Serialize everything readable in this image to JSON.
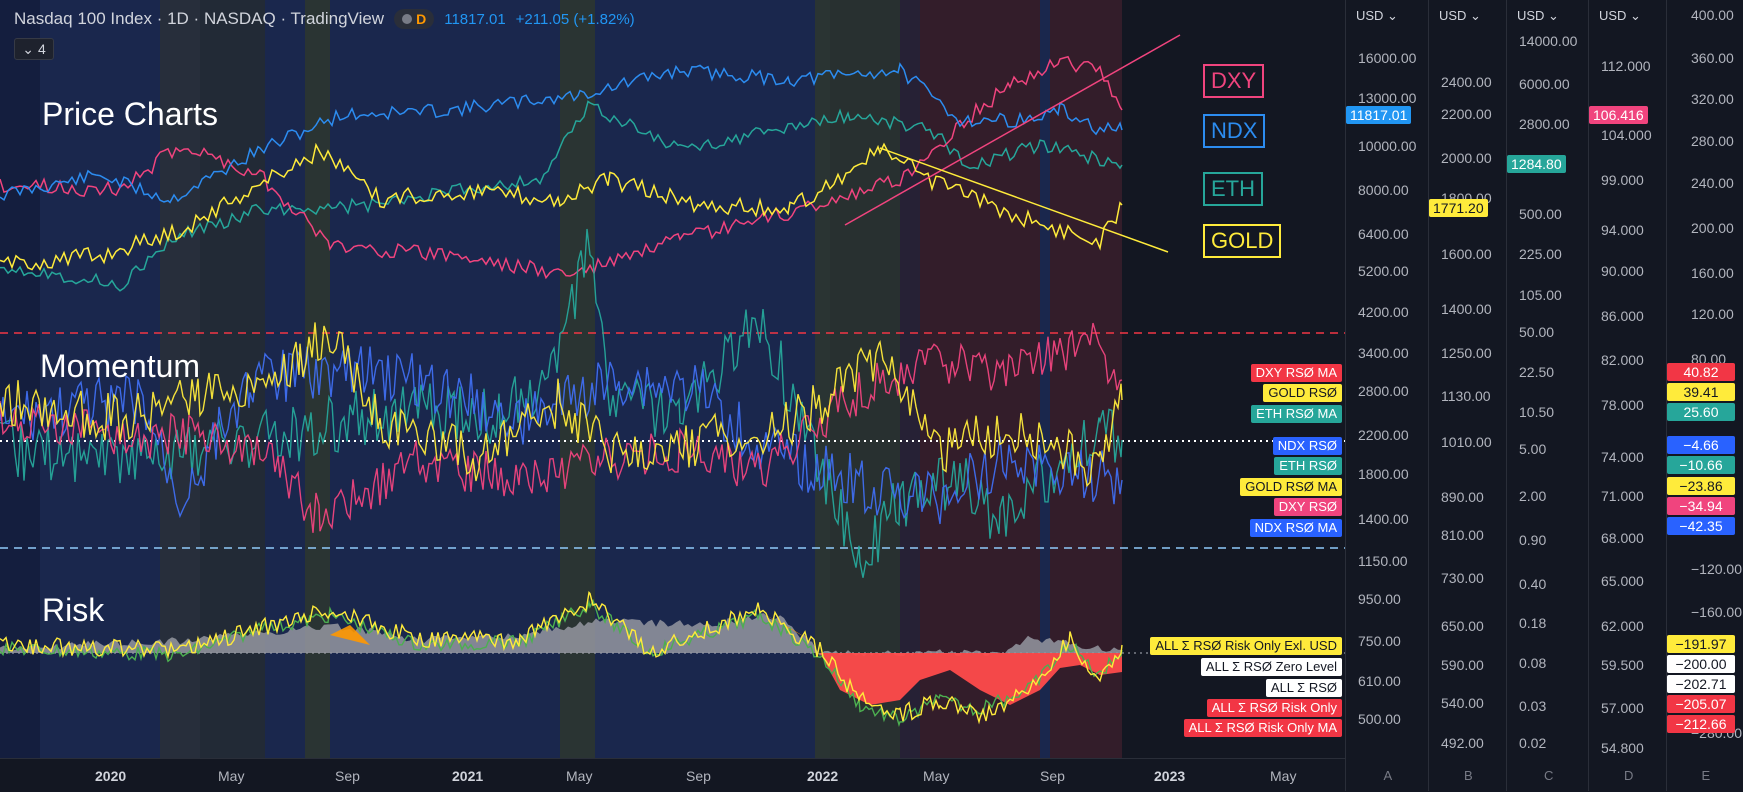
{
  "header": {
    "title": "Nasdaq 100 Index · 1D · NASDAQ · TradingView",
    "interval_badge": "D",
    "price": "11817.01",
    "change": "+211.05 (+1.82%)",
    "legend_count": "4"
  },
  "sections": {
    "price": "Price Charts",
    "momentum": "Momentum",
    "risk": "Risk"
  },
  "symbols": [
    {
      "label": "DXY",
      "color": "#f0447e"
    },
    {
      "label": "NDX",
      "color": "#2c8cf0"
    },
    {
      "label": "ETH",
      "color": "#26a69a"
    },
    {
      "label": "GOLD",
      "color": "#ffeb3b"
    }
  ],
  "indicator_labels": [
    {
      "text": "DXY RSØ MA",
      "bg": "#f23645",
      "fg": "#ffffff"
    },
    {
      "text": "GOLD RSØ",
      "bg": "#ffeb3b",
      "fg": "#131722"
    },
    {
      "text": "ETH RSØ MA",
      "bg": "#26a69a",
      "fg": "#ffffff"
    },
    {
      "text": "NDX RSØ",
      "bg": "#2962ff",
      "fg": "#ffffff"
    },
    {
      "text": "ETH RSØ",
      "bg": "#26a69a",
      "fg": "#ffffff"
    },
    {
      "text": "GOLD RSØ MA",
      "bg": "#ffeb3b",
      "fg": "#131722"
    },
    {
      "text": "DXY RSØ",
      "bg": "#f0447e",
      "fg": "#ffffff"
    },
    {
      "text": "NDX RSØ MA",
      "bg": "#2962ff",
      "fg": "#ffffff"
    },
    {
      "text": "ALL Σ RSØ Risk Only Exl. USD",
      "bg": "#ffeb3b",
      "fg": "#131722"
    },
    {
      "text": "ALL Σ RSØ Zero Level",
      "bg": "#ffffff",
      "fg": "#131722"
    },
    {
      "text": "ALL Σ RSØ",
      "bg": "#ffffff",
      "fg": "#131722"
    },
    {
      "text": "ALL Σ RSØ Risk Only",
      "bg": "#f23645",
      "fg": "#ffffff"
    },
    {
      "text": "ALL Σ RSØ Risk Only MA",
      "bg": "#f23645",
      "fg": "#ffffff"
    }
  ],
  "axes": {
    "A": {
      "currency": "USD",
      "name": "A",
      "ticks": [
        "16000.00",
        "13000.00",
        "10000.00",
        "8000.00",
        "6400.00",
        "5200.00",
        "4200.00",
        "3400.00",
        "2800.00",
        "2200.00",
        "1800.00",
        "1400.00",
        "1150.00",
        "950.00",
        "750.00",
        "610.00",
        "500.00"
      ],
      "price_label": "11817.01",
      "price_color": "#2196f3"
    },
    "B": {
      "currency": "USD",
      "name": "B",
      "ticks": [
        "2400.00",
        "2200.00",
        "2000.00",
        "1800.00",
        "1600.00",
        "1400.00",
        "1250.00",
        "1130.00",
        "1010.00",
        "890.00",
        "810.00",
        "730.00",
        "650.00",
        "590.00",
        "540.00",
        "492.00"
      ],
      "price_label": "1771.20",
      "price_color": "#ffeb3b"
    },
    "C": {
      "currency": "USD",
      "name": "C",
      "ticks": [
        "14000.00",
        "6000.00",
        "2800.00",
        "500.00",
        "225.00",
        "105.00",
        "50.00",
        "22.50",
        "10.50",
        "5.00",
        "2.00",
        "0.90",
        "0.40",
        "0.18",
        "0.08",
        "0.03",
        "0.02"
      ],
      "price_label": "1284.80",
      "price_color": "#26a69a"
    },
    "D": {
      "currency": "USD",
      "name": "D",
      "ticks": [
        "112.000",
        "104.000",
        "99.000",
        "94.000",
        "90.000",
        "86.000",
        "82.000",
        "78.000",
        "74.000",
        "71.000",
        "68.000",
        "65.000",
        "62.000",
        "59.500",
        "57.000",
        "54.800"
      ],
      "price_label": "106.416",
      "price_color": "#f0447e"
    },
    "E": {
      "name": "E",
      "ticks": [
        "400.00",
        "360.00",
        "320.00",
        "280.00",
        "240.00",
        "200.00",
        "160.00",
        "120.00",
        "80.00",
        "−120.00",
        "−160.00",
        "−280.00"
      ],
      "value_labels": [
        {
          "text": "40.82",
          "bg": "#f23645",
          "fg": "#ffffff"
        },
        {
          "text": "39.41",
          "bg": "#ffeb3b",
          "fg": "#131722"
        },
        {
          "text": "25.60",
          "bg": "#26a69a",
          "fg": "#ffffff"
        },
        {
          "text": "−4.66",
          "bg": "#2962ff",
          "fg": "#ffffff"
        },
        {
          "text": "−10.66",
          "bg": "#26a69a",
          "fg": "#ffffff"
        },
        {
          "text": "−23.86",
          "bg": "#ffeb3b",
          "fg": "#131722"
        },
        {
          "text": "−34.94",
          "bg": "#f0447e",
          "fg": "#ffffff"
        },
        {
          "text": "−42.35",
          "bg": "#2962ff",
          "fg": "#ffffff"
        },
        {
          "text": "−191.97",
          "bg": "#ffeb3b",
          "fg": "#131722"
        },
        {
          "text": "−200.00",
          "bg": "#ffffff",
          "fg": "#131722"
        },
        {
          "text": "−202.71",
          "bg": "#ffffff",
          "fg": "#131722"
        },
        {
          "text": "−205.07",
          "bg": "#f23645",
          "fg": "#ffffff"
        },
        {
          "text": "−212.66",
          "bg": "#f23645",
          "fg": "#ffffff"
        }
      ]
    }
  },
  "time_axis": [
    "2020",
    "May",
    "Sep",
    "2021",
    "May",
    "Sep",
    "2022",
    "May",
    "Sep",
    "2023",
    "May"
  ],
  "colors": {
    "bg": "#131722",
    "dxy": "#f0447e",
    "ndx": "#2c8cf0",
    "eth": "#26a69a",
    "gold": "#ffeb3b",
    "upper_dashed": "#f23645",
    "lower_dashed": "#90caf9"
  }
}
